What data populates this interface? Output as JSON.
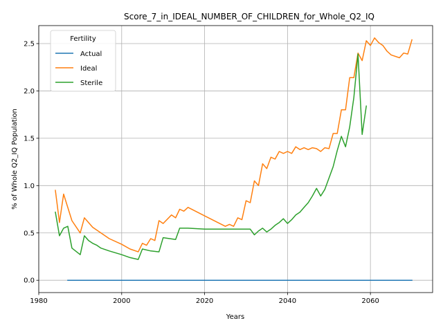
{
  "chart_data": {
    "type": "line",
    "title": "Score_7_in_IDEAL_NUMBER_OF_CHILDREN_for_Whole_Q2_IQ",
    "xlabel": "Years",
    "ylabel": "% of Whole Q2_IQ Population",
    "xlim": [
      1980,
      2075
    ],
    "ylim": [
      -0.13,
      2.69
    ],
    "xticks": [
      1980,
      2000,
      2020,
      2040,
      2060
    ],
    "yticks": [
      0.0,
      0.5,
      1.0,
      1.5,
      2.0,
      2.5
    ],
    "xtick_labels": [
      "1980",
      "2000",
      "2020",
      "2040",
      "2060"
    ],
    "ytick_labels": [
      "0.0",
      "0.5",
      "1.0",
      "1.5",
      "2.0",
      "2.5"
    ],
    "grid": true,
    "legend": {
      "title": "Fertility",
      "placement": "top-left"
    },
    "series": [
      {
        "name": "Actual",
        "color": "#1f77b4",
        "x": [
          1987,
          2070
        ],
        "y": [
          0.0,
          0.0
        ]
      },
      {
        "name": "Ideal",
        "color": "#ff7f0e",
        "x": [
          1984,
          1985,
          1986,
          1988,
          1990,
          1991,
          1993,
          1995,
          1997,
          2000,
          2002,
          2004,
          2005,
          2006,
          2007,
          2008,
          2009,
          2010,
          2012,
          2013,
          2014,
          2015,
          2016,
          2020,
          2025,
          2026,
          2027,
          2028,
          2029,
          2030,
          2031,
          2032,
          2033,
          2034,
          2035,
          2036,
          2037,
          2038,
          2039,
          2040,
          2041,
          2042,
          2043,
          2044,
          2045,
          2046,
          2047,
          2048,
          2049,
          2050,
          2051,
          2052,
          2053,
          2054,
          2055,
          2056,
          2057,
          2058,
          2059,
          2060,
          2061,
          2062,
          2063,
          2064,
          2065,
          2067,
          2068,
          2069,
          2070
        ],
        "y": [
          0.95,
          0.61,
          0.91,
          0.63,
          0.5,
          0.66,
          0.56,
          0.5,
          0.44,
          0.38,
          0.33,
          0.3,
          0.39,
          0.37,
          0.44,
          0.42,
          0.63,
          0.6,
          0.69,
          0.66,
          0.75,
          0.73,
          0.77,
          0.68,
          0.57,
          0.59,
          0.57,
          0.66,
          0.64,
          0.84,
          0.82,
          1.05,
          1.0,
          1.23,
          1.18,
          1.3,
          1.28,
          1.36,
          1.34,
          1.36,
          1.34,
          1.41,
          1.38,
          1.4,
          1.38,
          1.4,
          1.39,
          1.36,
          1.4,
          1.39,
          1.55,
          1.55,
          1.8,
          1.8,
          2.14,
          2.14,
          2.4,
          2.32,
          2.53,
          2.48,
          2.56,
          2.51,
          2.48,
          2.42,
          2.38,
          2.35,
          2.4,
          2.39,
          2.54
        ]
      },
      {
        "name": "Sterile",
        "color": "#2ca02c",
        "x": [
          1984,
          1985,
          1986,
          1987,
          1988,
          1990,
          1991,
          1992,
          1993,
          1994,
          1995,
          1997,
          2000,
          2002,
          2004,
          2005,
          2007,
          2009,
          2010,
          2013,
          2014,
          2016,
          2020,
          2025,
          2031,
          2032,
          2033,
          2034,
          2035,
          2036,
          2037,
          2038,
          2039,
          2040,
          2041,
          2042,
          2043,
          2044,
          2045,
          2046,
          2047,
          2048,
          2049,
          2050,
          2051,
          2052,
          2053,
          2054,
          2055,
          2056,
          2057,
          2058,
          2059
        ],
        "y": [
          0.72,
          0.47,
          0.55,
          0.57,
          0.34,
          0.27,
          0.47,
          0.42,
          0.39,
          0.37,
          0.34,
          0.31,
          0.27,
          0.24,
          0.22,
          0.33,
          0.31,
          0.3,
          0.45,
          0.43,
          0.55,
          0.55,
          0.54,
          0.54,
          0.54,
          0.48,
          0.52,
          0.55,
          0.51,
          0.54,
          0.58,
          0.61,
          0.65,
          0.6,
          0.64,
          0.69,
          0.72,
          0.77,
          0.82,
          0.89,
          0.97,
          0.89,
          0.96,
          1.08,
          1.2,
          1.37,
          1.52,
          1.41,
          1.62,
          1.93,
          2.39,
          1.54,
          1.84
        ]
      }
    ]
  }
}
